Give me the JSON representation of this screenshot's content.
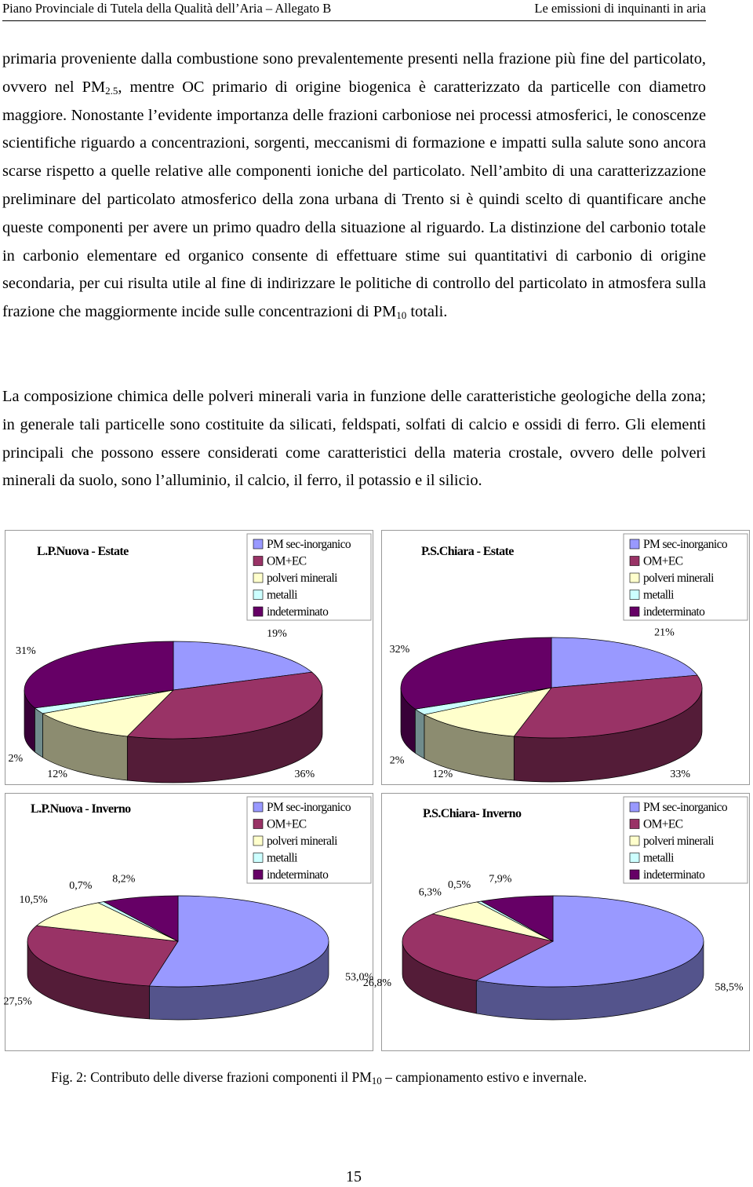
{
  "header": {
    "left": "Piano Provinciale di Tutela della Qualità dell’Aria – Allegato B",
    "right": "Le emissioni di inquinanti in aria"
  },
  "paragraphs": [
    {
      "runs": [
        {
          "text": "primaria proveniente dalla combustione sono prevalentemente presenti nella frazione più fine del particolato, ovvero nel PM"
        },
        {
          "sub": "2.5"
        },
        {
          "text": ", mentre OC primario di origine biogenica è caratterizzato da particelle con diametro maggiore. Nonostante l’evidente importanza delle frazioni carboniose nei processi atmosferici, le conoscenze scientifiche riguardo a concentrazioni, sorgenti, meccanismi di formazione e impatti sulla salute sono ancora scarse rispetto a quelle relative alle componenti ioniche del particolato. Nell’ambito di una caratterizzazione preliminare del particolato atmosferico della zona urbana di Trento si è quindi scelto di quantificare anche queste componenti per avere un primo quadro della situazione al riguardo. La distinzione del carbonio totale in carbonio elementare ed organico consente di effettuare stime sui quantitativi di carbonio di origine secondaria, per cui risulta utile al fine di indirizzare le politiche di controllo del particolato in atmosfera sulla frazione che maggiormente incide sulle concentrazioni di PM"
        },
        {
          "sub": "10"
        },
        {
          "text": " totali."
        }
      ]
    },
    {
      "runs": [
        {
          "text": "La composizione chimica delle polveri minerali varia in funzione delle caratteristiche geologiche della zona; in generale tali particelle sono costituite da silicati, feldspati, solfati di calcio e ossidi di ferro. Gli elementi principali che possono essere considerati come caratteristici della materia crostale, ovvero delle polveri minerali da suolo, sono l’alluminio, il calcio, il ferro, il potassio e il silicio."
        }
      ]
    }
  ],
  "chart_data": [
    {
      "type": "pie",
      "title": "L.P.Nuova - Estate",
      "categories": [
        "PM sec-inorganico",
        "OM+EC",
        "polveri minerali",
        "metalli",
        "indeterminato"
      ],
      "colors": [
        "#9999ff",
        "#993366",
        "#ffffcc",
        "#ccffff",
        "#660066"
      ],
      "values": [
        19,
        36,
        12,
        2,
        31
      ],
      "value_labels": [
        "19%",
        "36%",
        "12%",
        "2%",
        "31%"
      ]
    },
    {
      "type": "pie",
      "title": "P.S.Chiara - Estate",
      "categories": [
        "PM sec-inorganico",
        "OM+EC",
        "polveri minerali",
        "metalli",
        "indeterminato"
      ],
      "colors": [
        "#9999ff",
        "#993366",
        "#ffffcc",
        "#ccffff",
        "#660066"
      ],
      "values": [
        21,
        33,
        12,
        2,
        32
      ],
      "value_labels": [
        "21%",
        "33%",
        "12%",
        "2%",
        "32%"
      ]
    },
    {
      "type": "pie",
      "title": "L.P.Nuova - Inverno",
      "categories": [
        "PM sec-inorganico",
        "OM+EC",
        "polveri minerali",
        "metalli",
        "indeterminato"
      ],
      "colors": [
        "#9999ff",
        "#993366",
        "#ffffcc",
        "#ccffff",
        "#660066"
      ],
      "values": [
        53.0,
        27.5,
        10.5,
        0.7,
        8.2
      ],
      "value_labels": [
        "53,0%",
        "27,5%",
        "10,5%",
        "0,7%",
        "8,2%"
      ]
    },
    {
      "type": "pie",
      "title": "P.S.Chiara- Inverno",
      "categories": [
        "PM sec-inorganico",
        "OM+EC",
        "polveri minerali",
        "metalli",
        "indeterminato"
      ],
      "colors": [
        "#9999ff",
        "#993366",
        "#ffffcc",
        "#ccffff",
        "#660066"
      ],
      "values": [
        58.5,
        26.8,
        6.3,
        0.5,
        7.9
      ],
      "value_labels": [
        "58,5%",
        "26,8%",
        "6,3%",
        "0,5%",
        "7,9%"
      ]
    }
  ],
  "caption": {
    "runs": [
      {
        "text": "Fig. 2: Contributo delle diverse frazioni componenti il PM"
      },
      {
        "sub": "10"
      },
      {
        "text": " – campionamento estivo e invernale."
      }
    ]
  },
  "page_number": "15"
}
